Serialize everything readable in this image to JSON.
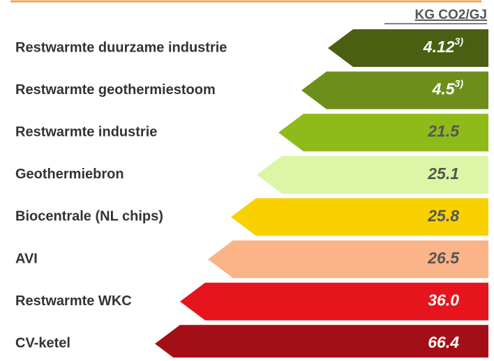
{
  "header": {
    "unit": "KG CO2/GJ"
  },
  "rows": [
    {
      "label": "Restwarmte duurzame industrie",
      "value": "4.12",
      "note": "3)",
      "color": "#4b5f12",
      "text_color": "#ffffff"
    },
    {
      "label": "Restwarmte geothermiestoom",
      "value": "4.5",
      "note": "3)",
      "color": "#6e8e1b",
      "text_color": "#ffffff"
    },
    {
      "label": "Restwarmte industrie",
      "value": "21.5",
      "color": "#8fbb1a",
      "text_color": "#555555"
    },
    {
      "label": "Geothermiebron",
      "value": "25.1",
      "color": "#dcf5a6",
      "text_color": "#555555"
    },
    {
      "label": "Biocentrale (NL chips)",
      "value": "25.8",
      "color": "#f9d100",
      "text_color": "#555555"
    },
    {
      "label": "AVI",
      "value": "26.5",
      "color": "#fbb388",
      "text_color": "#555555"
    },
    {
      "label": "Restwarmte WKC",
      "value": "36.0",
      "color": "#e5141d",
      "text_color": "#ffffff"
    },
    {
      "label": "CV-ketel",
      "value": "66.4",
      "color": "#a40f17",
      "text_color": "#ffffff"
    }
  ]
}
